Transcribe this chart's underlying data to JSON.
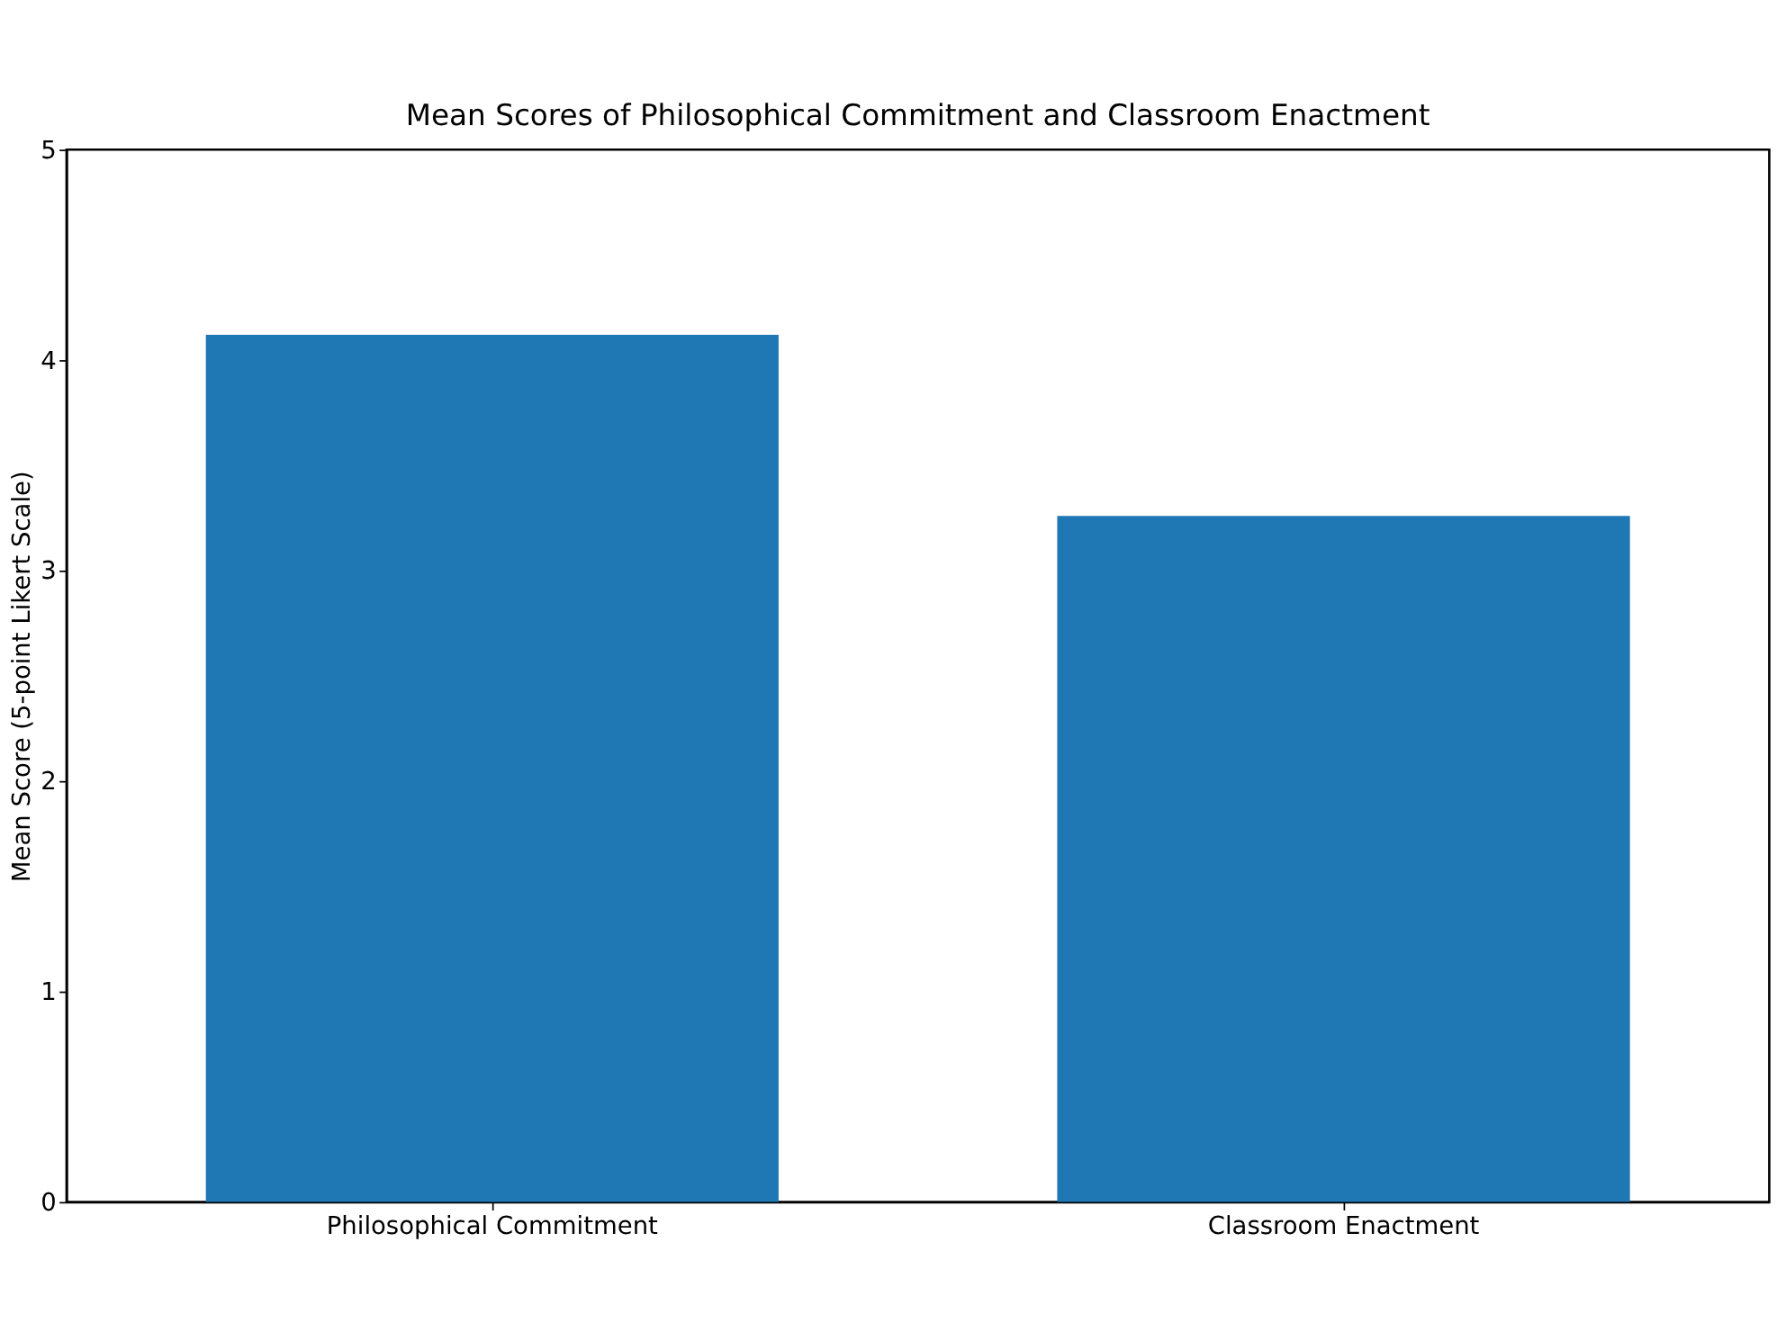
{
  "chart_data": {
    "type": "bar",
    "title": "Mean Scores of Philosophical Commitment and Classroom Enactment",
    "ylabel": "Mean Score (5-point Likert Scale)",
    "categories": [
      "Philosophical Commitment",
      "Classroom Enactment"
    ],
    "values": [
      4.12,
      3.26
    ],
    "color": "#1f77b4",
    "ylim": [
      0,
      5
    ],
    "yticks": [
      0,
      1,
      2,
      3,
      4,
      5
    ],
    "grid": false
  }
}
